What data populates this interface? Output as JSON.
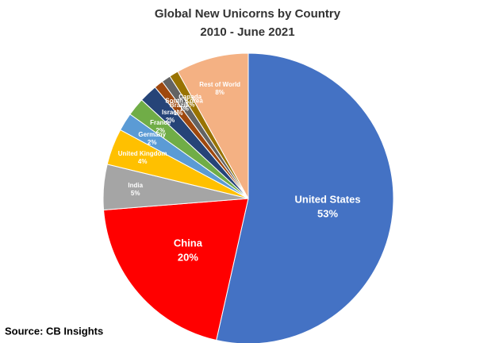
{
  "chart_data": {
    "type": "pie",
    "title": "Global New Unicorns by Country",
    "subtitle": "2010 - June 2021",
    "categories": [
      "United States",
      "China",
      "India",
      "United Kingdom",
      "Germany",
      "France",
      "Israel",
      "Brazil",
      "South Korea",
      "Canada",
      "Rest of World"
    ],
    "values": [
      53,
      20,
      5,
      4,
      2,
      2,
      2,
      1,
      1,
      1,
      8
    ],
    "value_labels": [
      "53%",
      "20%",
      "5%",
      "4%",
      "2%",
      "2%",
      "2%",
      "1%",
      "1%",
      "1%",
      "8%"
    ],
    "colors": [
      "#4472c4",
      "#ff0000",
      "#a5a5a5",
      "#ffc000",
      "#5b9bd5",
      "#70ad47",
      "#264478",
      "#9e480e",
      "#636363",
      "#997300",
      "#f4b183"
    ]
  },
  "source": "Source: CB Insights"
}
